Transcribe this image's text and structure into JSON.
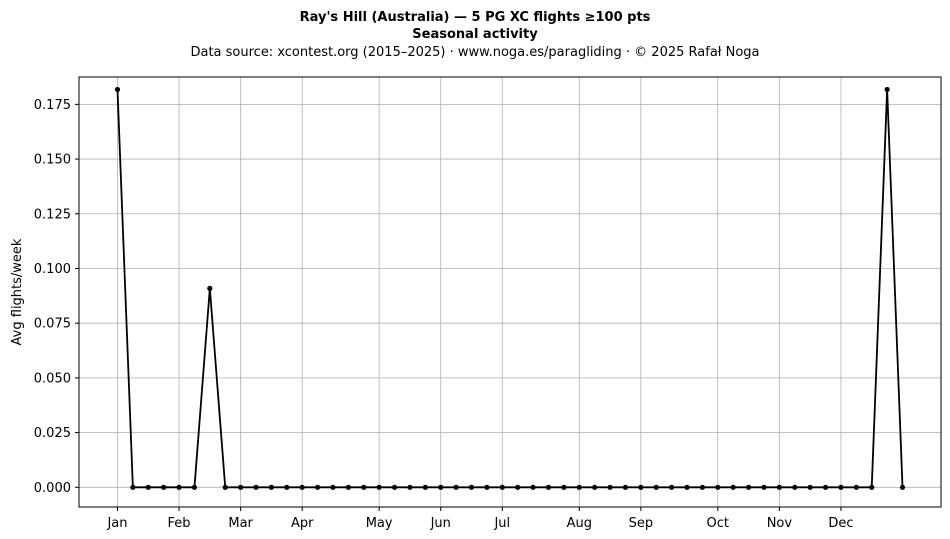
{
  "chart_data": {
    "type": "line",
    "title_line1": "Ray's Hill (Australia)  —  5 PG XC flights ≥100 pts",
    "title_line2": "Seasonal activity",
    "subtitle": "Data source: xcontest.org (2015–2025)  ·  www.noga.es/paragliding  ·  © 2025 Rafał Noga",
    "xlabel": "",
    "ylabel": "Avg flights/week",
    "ylim": [
      -0.009,
      0.1875
    ],
    "xlim": [
      -2.5,
      53.5
    ],
    "yticks": [
      0.0,
      0.025,
      0.05,
      0.075,
      0.1,
      0.125,
      0.15,
      0.175
    ],
    "ytick_labels": [
      "0.000",
      "0.025",
      "0.050",
      "0.075",
      "0.100",
      "0.125",
      "0.150",
      "0.175"
    ],
    "months": [
      {
        "label": "Jan",
        "week": 0
      },
      {
        "label": "Feb",
        "week": 4
      },
      {
        "label": "Mar",
        "week": 8
      },
      {
        "label": "Apr",
        "week": 12
      },
      {
        "label": "May",
        "week": 17
      },
      {
        "label": "Jun",
        "week": 21
      },
      {
        "label": "Jul",
        "week": 25
      },
      {
        "label": "Aug",
        "week": 30
      },
      {
        "label": "Sep",
        "week": 34
      },
      {
        "label": "Oct",
        "week": 39
      },
      {
        "label": "Nov",
        "week": 43
      },
      {
        "label": "Dec",
        "week": 47
      }
    ],
    "grid": true,
    "series": [
      {
        "color": "#000000",
        "x": [
          0,
          1,
          2,
          3,
          4,
          5,
          6,
          7,
          8,
          9,
          10,
          11,
          12,
          13,
          14,
          15,
          16,
          17,
          18,
          19,
          20,
          21,
          22,
          23,
          24,
          25,
          26,
          27,
          28,
          29,
          30,
          31,
          32,
          33,
          34,
          35,
          36,
          37,
          38,
          39,
          40,
          41,
          42,
          43,
          44,
          45,
          46,
          47,
          48,
          49,
          50,
          51
        ],
        "y": [
          0.1818,
          0,
          0,
          0,
          0,
          0,
          0.0909,
          0,
          0,
          0,
          0,
          0,
          0,
          0,
          0,
          0,
          0,
          0,
          0,
          0,
          0,
          0,
          0,
          0,
          0,
          0,
          0,
          0,
          0,
          0,
          0,
          0,
          0,
          0,
          0,
          0,
          0,
          0,
          0,
          0,
          0,
          0,
          0,
          0,
          0,
          0,
          0,
          0,
          0,
          0,
          0.1818,
          0
        ]
      }
    ]
  }
}
